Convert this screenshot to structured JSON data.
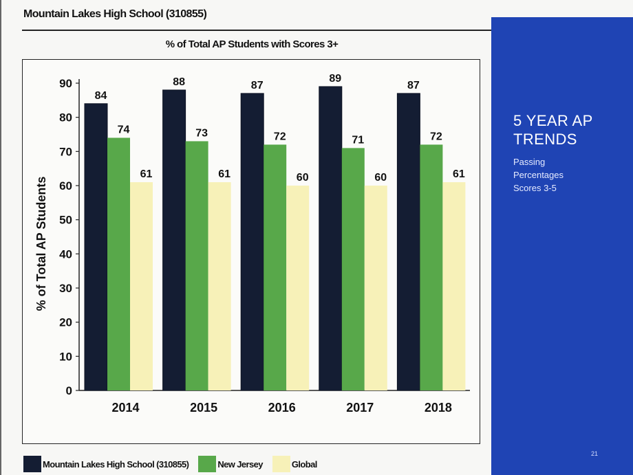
{
  "header": {
    "title": "Mountain Lakes High School (310855)"
  },
  "side_panel": {
    "heading_line1": "5 YEAR AP",
    "heading_line2": "TRENDS",
    "sub_line1": "Passing",
    "sub_line2": "Percentages",
    "sub_line3": "Scores 3-5",
    "page_number": "21",
    "background_color": "#1f44b4"
  },
  "chart_data": {
    "type": "bar",
    "title": "% of Total AP Students with Scores 3+",
    "xlabel": "",
    "ylabel": "% of Total AP Students",
    "ylim": [
      0,
      90
    ],
    "yticks": [
      0,
      10,
      20,
      30,
      40,
      50,
      60,
      70,
      80,
      90
    ],
    "grid": false,
    "legend_position": "bottom",
    "categories": [
      "2014",
      "2015",
      "2016",
      "2017",
      "2018"
    ],
    "series": [
      {
        "name": "Mountain Lakes High School (310855)",
        "color": "#141d33",
        "values": [
          84,
          88,
          87,
          89,
          87
        ]
      },
      {
        "name": "New Jersey",
        "color": "#58a84a",
        "values": [
          74,
          73,
          72,
          71,
          72
        ]
      },
      {
        "name": "Global",
        "color": "#f7f1b8",
        "values": [
          61,
          61,
          60,
          60,
          61
        ]
      }
    ]
  }
}
